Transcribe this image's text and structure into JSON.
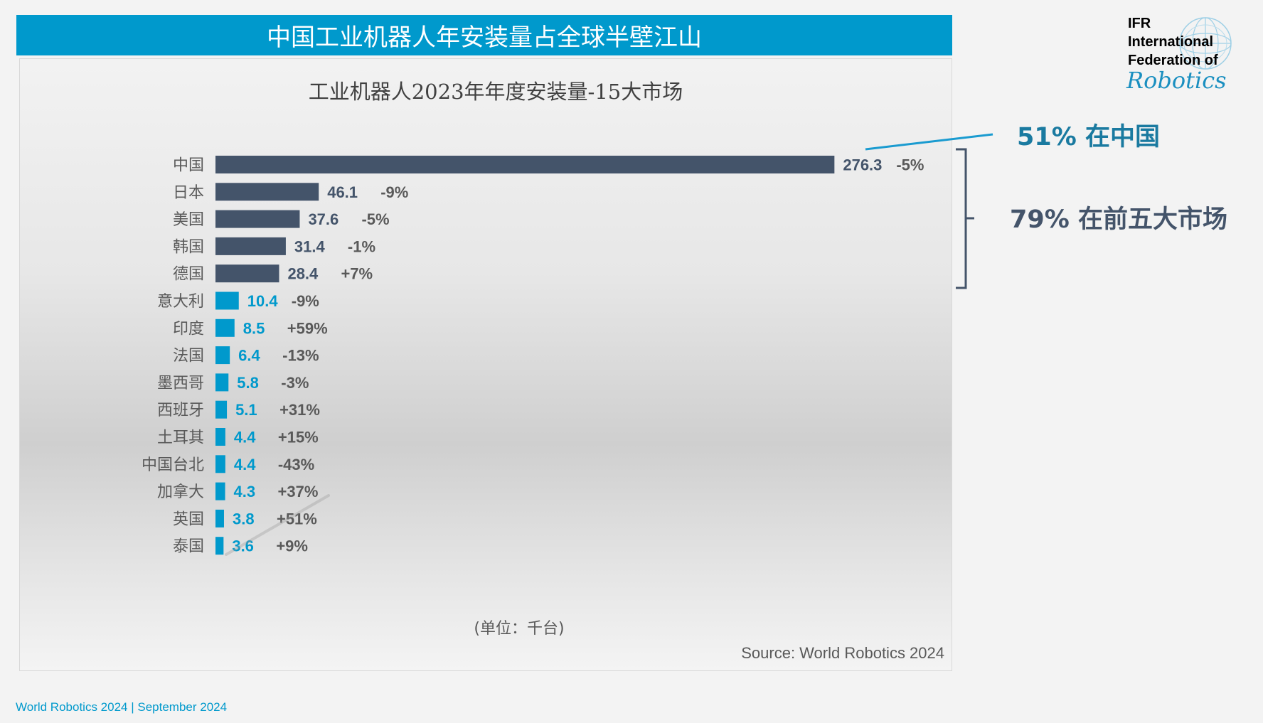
{
  "header": {
    "title": "中国工业机器人年安装量占全球半壁江山"
  },
  "chart_data": {
    "type": "bar",
    "orientation": "horizontal",
    "title": "工业机器人2023年年度安装量-15大市场",
    "unit_note": "(单位：千台)",
    "categories": [
      "中国",
      "日本",
      "美国",
      "韩国",
      "德国",
      "意大利",
      "印度",
      "法国",
      "墨西哥",
      "西班牙",
      "土耳其",
      "中国台北",
      "加拿大",
      "英国",
      "泰国"
    ],
    "values": [
      276.3,
      46.1,
      37.6,
      31.4,
      28.4,
      10.4,
      8.5,
      6.4,
      5.8,
      5.1,
      4.4,
      4.4,
      4.3,
      3.8,
      3.6
    ],
    "value_labels": [
      "276.3",
      "46.1",
      "37.6",
      "31.4",
      "28.4",
      "10.4",
      "8.5",
      "6.4",
      "5.8",
      "5.1",
      "4.4",
      "4.4",
      "4.3",
      "3.8",
      "3.6"
    ],
    "change_labels": [
      "-5%",
      "-9%",
      "-5%",
      "-1%",
      "+7%",
      "-9%",
      "+59%",
      "-13%",
      "-3%",
      "+31%",
      "+15%",
      "-43%",
      "+37%",
      "+51%",
      "+9%"
    ],
    "highlight_top_n": 5,
    "colors": {
      "top": "#44546a",
      "rest": "#0099cc",
      "category_text": "#595959",
      "change_text": "#595959"
    }
  },
  "annotations": {
    "china": "51% 在中国",
    "top5": "79% 在前五大市场",
    "china_color": "#1a7aa0",
    "top5_color": "#44546a"
  },
  "source": "Source: World Robotics 2024",
  "footer": "World Robotics 2024  | September 2024",
  "logo": {
    "line1": "IFR",
    "line2": "International",
    "line3": "Federation of",
    "script": "Robotics"
  }
}
